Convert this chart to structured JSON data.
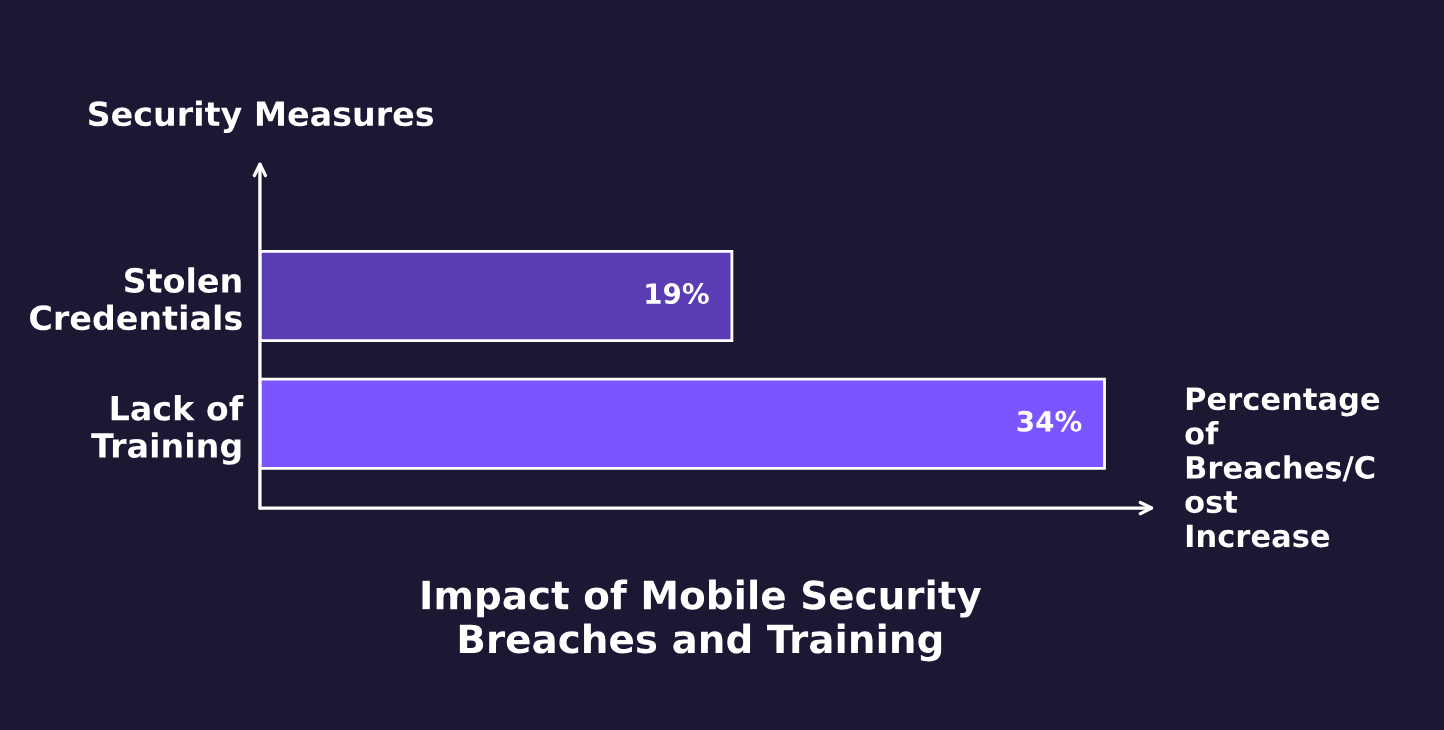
{
  "chart_data": {
    "type": "bar",
    "orientation": "horizontal",
    "title": "Impact of Mobile Security Breaches and Training",
    "xlabel": "Percentage of Breaches/Cost Increase",
    "ylabel": "Security Measures",
    "categories": [
      "Stolen Credentials",
      "Lack of Training"
    ],
    "values": [
      19,
      34
    ],
    "colors": [
      "#5a3cb4",
      "#7b55ff"
    ],
    "value_labels": [
      "19%",
      "34%"
    ],
    "tick_labels": "y",
    "grid": false,
    "legend": false
  }
}
